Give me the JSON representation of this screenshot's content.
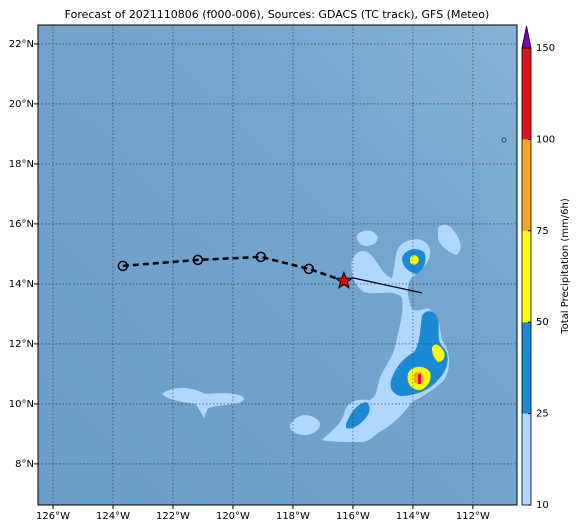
{
  "chart_data": {
    "type": "map",
    "title": "Forecast of 2021110806 (f000-006), Sources: GDACS (TC track), GFS (Meteo)",
    "xlim": [
      -126.5,
      -110.53
    ],
    "ylim": [
      6.63,
      22.63
    ],
    "xticks": [
      {
        "value": -126,
        "label": "126°W"
      },
      {
        "value": -124,
        "label": "124°W"
      },
      {
        "value": -122,
        "label": "122°W"
      },
      {
        "value": -120,
        "label": "120°W"
      },
      {
        "value": -118,
        "label": "118°W"
      },
      {
        "value": -116,
        "label": "116°W"
      },
      {
        "value": -114,
        "label": "114°W"
      },
      {
        "value": -112,
        "label": "112°W"
      }
    ],
    "yticks": [
      {
        "value": 8,
        "label": "8°N"
      },
      {
        "value": 10,
        "label": "10°N"
      },
      {
        "value": 12,
        "label": "12°N"
      },
      {
        "value": 14,
        "label": "14°N"
      },
      {
        "value": 16,
        "label": "16°N"
      },
      {
        "value": 18,
        "label": "18°N"
      },
      {
        "value": 20,
        "label": "20°N"
      },
      {
        "value": 22,
        "label": "22°N"
      }
    ],
    "grid": true,
    "track": {
      "lon": [
        -123.67,
        -121.17,
        -119.07,
        -117.47
      ],
      "lat": [
        14.6,
        14.8,
        14.9,
        14.5
      ]
    },
    "position": {
      "lon": -116.3,
      "lat": 14.1
    },
    "forward_track": {
      "lon": [
        -116.3,
        -116.0,
        -113.7
      ],
      "lat": [
        14.1,
        14.2,
        13.7
      ]
    },
    "colorbar": {
      "levels": [
        10,
        25,
        50,
        75,
        100,
        150
      ],
      "colors": [
        "#b0d8ff",
        "#1a8ad4",
        "#ffff00",
        "#f5a623",
        "#e0141e"
      ],
      "extend_color": "#8000c0",
      "label": "Total Precipitation (mm/6h)"
    }
  }
}
